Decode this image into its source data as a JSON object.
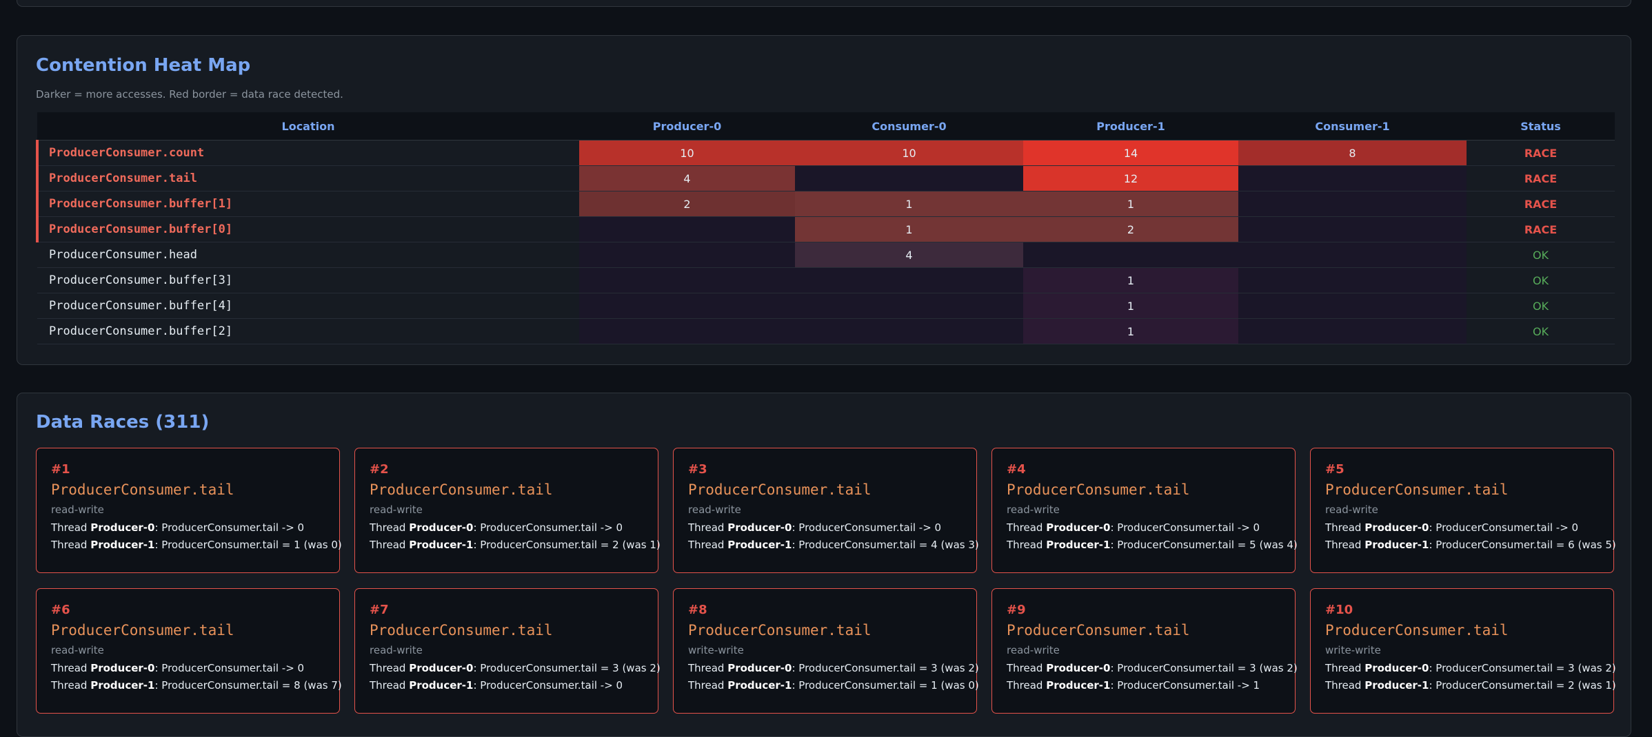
{
  "heatmap": {
    "title": "Contention Heat Map",
    "caption": "Darker = more accesses. Red border = data race detected.",
    "columns": [
      "Location",
      "Producer-0",
      "Consumer-0",
      "Producer-1",
      "Consumer-1",
      "Status"
    ],
    "rows": [
      {
        "location": "ProducerConsumer.count",
        "values": [
          "10",
          "10",
          "14",
          "8"
        ],
        "status": "RACE"
      },
      {
        "location": "ProducerConsumer.tail",
        "values": [
          "4",
          "",
          "12",
          ""
        ],
        "status": "RACE"
      },
      {
        "location": "ProducerConsumer.buffer[1]",
        "values": [
          "2",
          "1",
          "1",
          ""
        ],
        "status": "RACE"
      },
      {
        "location": "ProducerConsumer.buffer[0]",
        "values": [
          "",
          "1",
          "2",
          ""
        ],
        "status": "RACE"
      },
      {
        "location": "ProducerConsumer.head",
        "values": [
          "",
          "4",
          "",
          ""
        ],
        "status": "OK"
      },
      {
        "location": "ProducerConsumer.buffer[3]",
        "values": [
          "",
          "",
          "1",
          ""
        ],
        "status": "OK"
      },
      {
        "location": "ProducerConsumer.buffer[4]",
        "values": [
          "",
          "",
          "1",
          ""
        ],
        "status": "OK"
      },
      {
        "location": "ProducerConsumer.buffer[2]",
        "values": [
          "",
          "",
          "1",
          ""
        ],
        "status": "OK"
      }
    ],
    "cell_colors": [
      [
        "#b8312a",
        "#b8312a",
        "#e0342a",
        "#a32d2a"
      ],
      [
        "#7a3333",
        "#1a1628",
        "#d9342a",
        "#1a1628"
      ],
      [
        "#6e3131",
        "#733535",
        "#733535",
        "#1a1628"
      ],
      [
        "#1a1628",
        "#733535",
        "#733535",
        "#1a1628"
      ],
      [
        "#1a1628",
        "#3d2a3c",
        "#1a1628",
        "#1a1628"
      ],
      [
        "#1a1628",
        "#1a1628",
        "#2b1a33",
        "#1a1628"
      ],
      [
        "#1a1628",
        "#1a1628",
        "#2b1a33",
        "#1a1628"
      ],
      [
        "#1a1628",
        "#1a1628",
        "#2b1a33",
        "#1a1628"
      ]
    ],
    "status_colors": {
      "RACE": "#e5534b",
      "OK": "#57ab5a"
    }
  },
  "races": {
    "title": "Data Races (311)",
    "items": [
      {
        "num": "#1",
        "location": "ProducerConsumer.tail",
        "type": "read-write",
        "line1": {
          "prefix": "Thread ",
          "thread": "Producer-0",
          "text": ": ProducerConsumer.tail -> 0"
        },
        "line2": {
          "prefix": "Thread ",
          "thread": "Producer-1",
          "text": ": ProducerConsumer.tail = 1 (was 0)"
        }
      },
      {
        "num": "#2",
        "location": "ProducerConsumer.tail",
        "type": "read-write",
        "line1": {
          "prefix": "Thread ",
          "thread": "Producer-0",
          "text": ": ProducerConsumer.tail -> 0"
        },
        "line2": {
          "prefix": "Thread ",
          "thread": "Producer-1",
          "text": ": ProducerConsumer.tail = 2 (was 1)"
        }
      },
      {
        "num": "#3",
        "location": "ProducerConsumer.tail",
        "type": "read-write",
        "line1": {
          "prefix": "Thread ",
          "thread": "Producer-0",
          "text": ": ProducerConsumer.tail -> 0"
        },
        "line2": {
          "prefix": "Thread ",
          "thread": "Producer-1",
          "text": ": ProducerConsumer.tail = 4 (was 3)"
        }
      },
      {
        "num": "#4",
        "location": "ProducerConsumer.tail",
        "type": "read-write",
        "line1": {
          "prefix": "Thread ",
          "thread": "Producer-0",
          "text": ": ProducerConsumer.tail -> 0"
        },
        "line2": {
          "prefix": "Thread ",
          "thread": "Producer-1",
          "text": ": ProducerConsumer.tail = 5 (was 4)"
        }
      },
      {
        "num": "#5",
        "location": "ProducerConsumer.tail",
        "type": "read-write",
        "line1": {
          "prefix": "Thread ",
          "thread": "Producer-0",
          "text": ": ProducerConsumer.tail -> 0"
        },
        "line2": {
          "prefix": "Thread ",
          "thread": "Producer-1",
          "text": ": ProducerConsumer.tail = 6 (was 5)"
        }
      },
      {
        "num": "#6",
        "location": "ProducerConsumer.tail",
        "type": "read-write",
        "line1": {
          "prefix": "Thread ",
          "thread": "Producer-0",
          "text": ": ProducerConsumer.tail -> 0"
        },
        "line2": {
          "prefix": "Thread ",
          "thread": "Producer-1",
          "text": ": ProducerConsumer.tail = 8 (was 7)"
        }
      },
      {
        "num": "#7",
        "location": "ProducerConsumer.tail",
        "type": "read-write",
        "line1": {
          "prefix": "Thread ",
          "thread": "Producer-0",
          "text": ": ProducerConsumer.tail = 3 (was 2)"
        },
        "line2": {
          "prefix": "Thread ",
          "thread": "Producer-1",
          "text": ": ProducerConsumer.tail -> 0"
        }
      },
      {
        "num": "#8",
        "location": "ProducerConsumer.tail",
        "type": "write-write",
        "line1": {
          "prefix": "Thread ",
          "thread": "Producer-0",
          "text": ": ProducerConsumer.tail = 3 (was 2)"
        },
        "line2": {
          "prefix": "Thread ",
          "thread": "Producer-1",
          "text": ": ProducerConsumer.tail = 1 (was 0)"
        }
      },
      {
        "num": "#9",
        "location": "ProducerConsumer.tail",
        "type": "read-write",
        "line1": {
          "prefix": "Thread ",
          "thread": "Producer-0",
          "text": ": ProducerConsumer.tail = 3 (was 2)"
        },
        "line2": {
          "prefix": "Thread ",
          "thread": "Producer-1",
          "text": ": ProducerConsumer.tail -> 1"
        }
      },
      {
        "num": "#10",
        "location": "ProducerConsumer.tail",
        "type": "write-write",
        "line1": {
          "prefix": "Thread ",
          "thread": "Producer-0",
          "text": ": ProducerConsumer.tail = 3 (was 2)"
        },
        "line2": {
          "prefix": "Thread ",
          "thread": "Producer-1",
          "text": ": ProducerConsumer.tail = 2 (was 1)"
        }
      }
    ]
  }
}
